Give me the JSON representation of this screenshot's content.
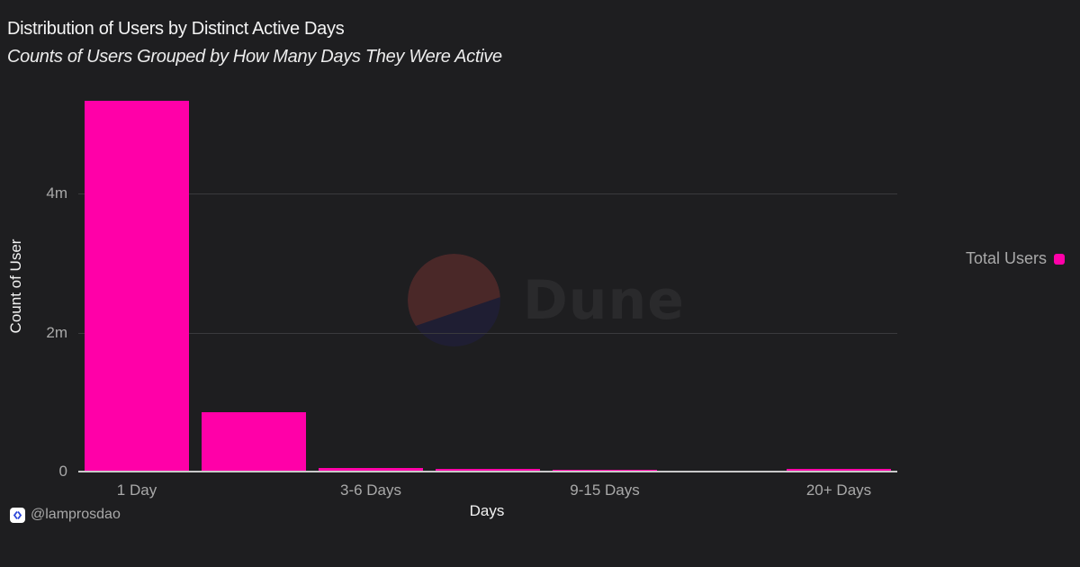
{
  "header": {
    "title": "Distribution of Users by Distinct Active Days",
    "subtitle": "Counts of Users Grouped by How Many Days They Were Active"
  },
  "footer": {
    "handle": "@lamprosdao",
    "icon": "lamprosdao-logo-icon"
  },
  "watermark": {
    "text": "Dune",
    "icon": "dune-logo-icon"
  },
  "colors": {
    "background": "#1e1e20",
    "bar": "#ff00a8",
    "grid": "#3a3a3d",
    "axis": "#c9c9c9",
    "tick_text": "#a9a9a9",
    "dune_logo_top": "#4a2828",
    "dune_logo_bottom": "#1f1e33"
  },
  "legend": {
    "items": [
      {
        "label": "Total Users",
        "color": "#ff00a8"
      }
    ]
  },
  "chart_data": {
    "type": "bar",
    "title": "Distribution of Users by Distinct Active Days",
    "subtitle": "Counts of Users Grouped by How Many Days They Were Active",
    "xlabel": "Days",
    "ylabel": "Count of User",
    "categories": [
      "1 Day",
      "",
      "3-6 Days",
      "",
      "9-15 Days",
      "",
      "20+ Days"
    ],
    "visible_x_tick_labels": [
      "1 Day",
      "3-6 Days",
      "9-15 Days",
      "20+ Days"
    ],
    "series": [
      {
        "name": "Total Users",
        "color": "#ff00a8",
        "values": [
          5330000,
          850000,
          50000,
          35000,
          30000,
          10000,
          45000
        ]
      }
    ],
    "y_ticks": [
      {
        "value": 0,
        "label": "0"
      },
      {
        "value": 2000000,
        "label": "2m"
      },
      {
        "value": 4000000,
        "label": "4m"
      }
    ],
    "ylim": [
      0,
      5400000
    ],
    "grid": true,
    "legend_position": "right"
  }
}
